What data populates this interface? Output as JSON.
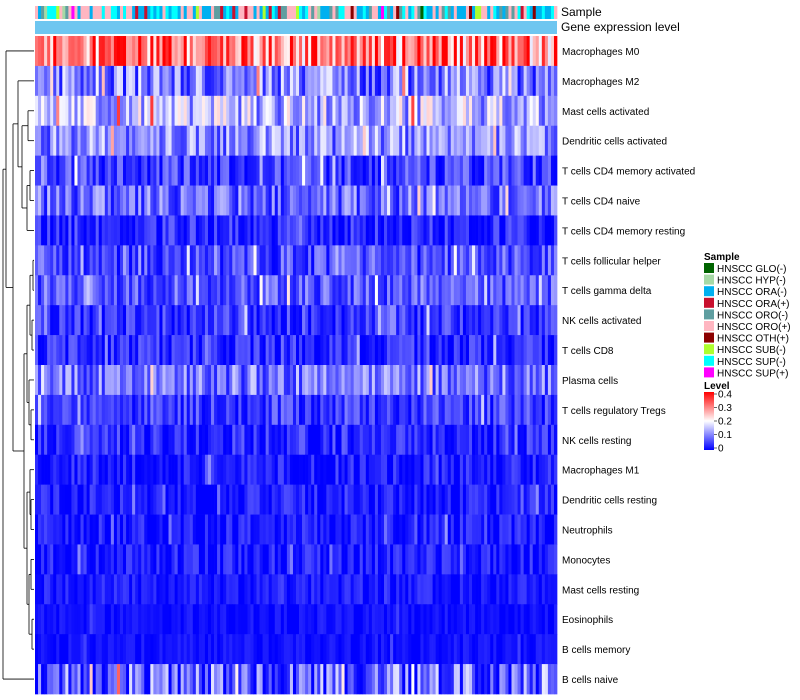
{
  "chart_data": {
    "type": "heatmap",
    "title": "",
    "annotation_rows": [
      "Sample",
      "Gene expression level"
    ],
    "row_labels": [
      "Macrophages M0",
      "Macrophages M2",
      "Mast cells activated",
      "Dendritic cells activated",
      "T cells CD4 memory activated",
      "T cells CD4 naive",
      "T cells CD4 memory resting",
      "T cells follicular helper",
      "T cells gamma delta",
      "NK cells activated",
      "T cells CD8",
      "Plasma cells",
      "T cells regulatory  Tregs",
      "NK cells resting",
      "Macrophages M1",
      "Dendritic cells resting",
      "Neutrophils",
      "Monocytes",
      "Mast cells resting",
      "Eosinophils",
      "B cells memory",
      "B cells naive"
    ],
    "row_typical_levels": [
      0.3,
      0.1,
      0.14,
      0.11,
      0.05,
      0.08,
      0.03,
      0.06,
      0.07,
      0.04,
      0.03,
      0.09,
      0.05,
      0.03,
      0.02,
      0.02,
      0.02,
      0.02,
      0.02,
      0.01,
      0.01,
      0.06
    ],
    "row_variability": [
      0.12,
      0.09,
      0.09,
      0.08,
      0.06,
      0.07,
      0.05,
      0.06,
      0.06,
      0.05,
      0.05,
      0.07,
      0.05,
      0.05,
      0.04,
      0.04,
      0.04,
      0.04,
      0.03,
      0.02,
      0.02,
      0.12
    ],
    "n_samples": 172,
    "color_scale": {
      "low": "#0000ff",
      "mid": "#ffffff",
      "high": "#ff0000",
      "min": 0,
      "mid_value": 0.2,
      "max": 0.4
    },
    "legend_level": {
      "title": "Level",
      "ticks": [
        "0.4",
        "0.3",
        "0.2",
        "0.1",
        "0"
      ]
    },
    "legend_sample": {
      "title": "Sample",
      "items": [
        {
          "label": "HNSCC GLO(-)",
          "color": "#006400"
        },
        {
          "label": "HNSCC HYP(-)",
          "color": "#a6d9a6"
        },
        {
          "label": "HNSCC ORA(-)",
          "color": "#00b0f0"
        },
        {
          "label": "HNSCC ORA(+)",
          "color": "#c8102e"
        },
        {
          "label": "HNSCC ORO(-)",
          "color": "#5f9ea0"
        },
        {
          "label": "HNSCC ORO(+)",
          "color": "#ffb6c1"
        },
        {
          "label": "HNSCC OTH(+)",
          "color": "#8b0000"
        },
        {
          "label": "HNSCC SUB(-)",
          "color": "#adff2f"
        },
        {
          "label": "HNSCC SUP(-)",
          "color": "#00ffff"
        },
        {
          "label": "HNSCC SUP(+)",
          "color": "#ff00ff"
        }
      ]
    },
    "gene_expression_bar_color": "#6ec6f0"
  }
}
